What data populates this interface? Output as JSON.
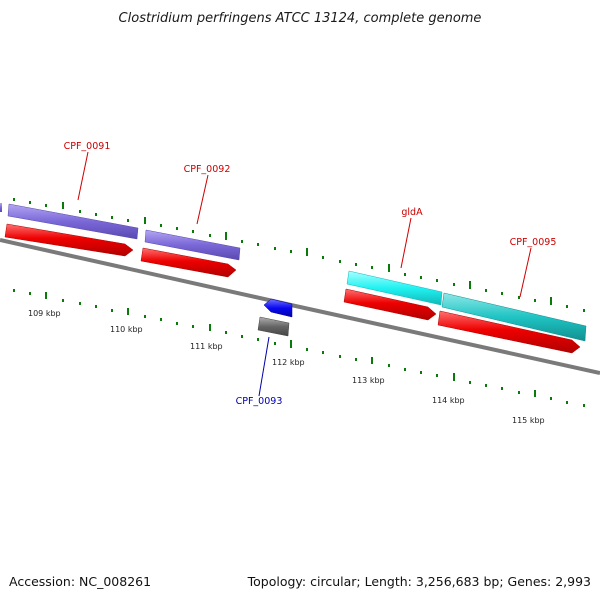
{
  "title": "Clostridium perfringens ATCC 13124, complete genome",
  "footer": {
    "accession": "Accession: NC_008261",
    "summary": "Topology: circular; Length: 3,256,683 bp; Genes: 2,993"
  },
  "kbp_labels": [
    "109 kbp",
    "110 kbp",
    "111 kbp",
    "112 kbp",
    "113 kbp",
    "114 kbp",
    "115 kbp"
  ],
  "genes": [
    {
      "label": "CPF_0091",
      "color": "#cc0000"
    },
    {
      "label": "CPF_0092",
      "color": "#cc0000"
    },
    {
      "label": "gldA",
      "color": "#cc0000"
    },
    {
      "label": "CPF_0095",
      "color": "#cc0000"
    },
    {
      "label": "CPF_0093",
      "color": "#0000aa"
    }
  ],
  "colors": {
    "cog_purple": "#7b68d8",
    "cog_cyan": "#20d4d4",
    "cds_red": "#ee0000",
    "cds_blue": "#0a0af0",
    "cds_gray": "#666666",
    "backbone": "#7a7a7a",
    "tick_green": "#0a7a0a"
  }
}
